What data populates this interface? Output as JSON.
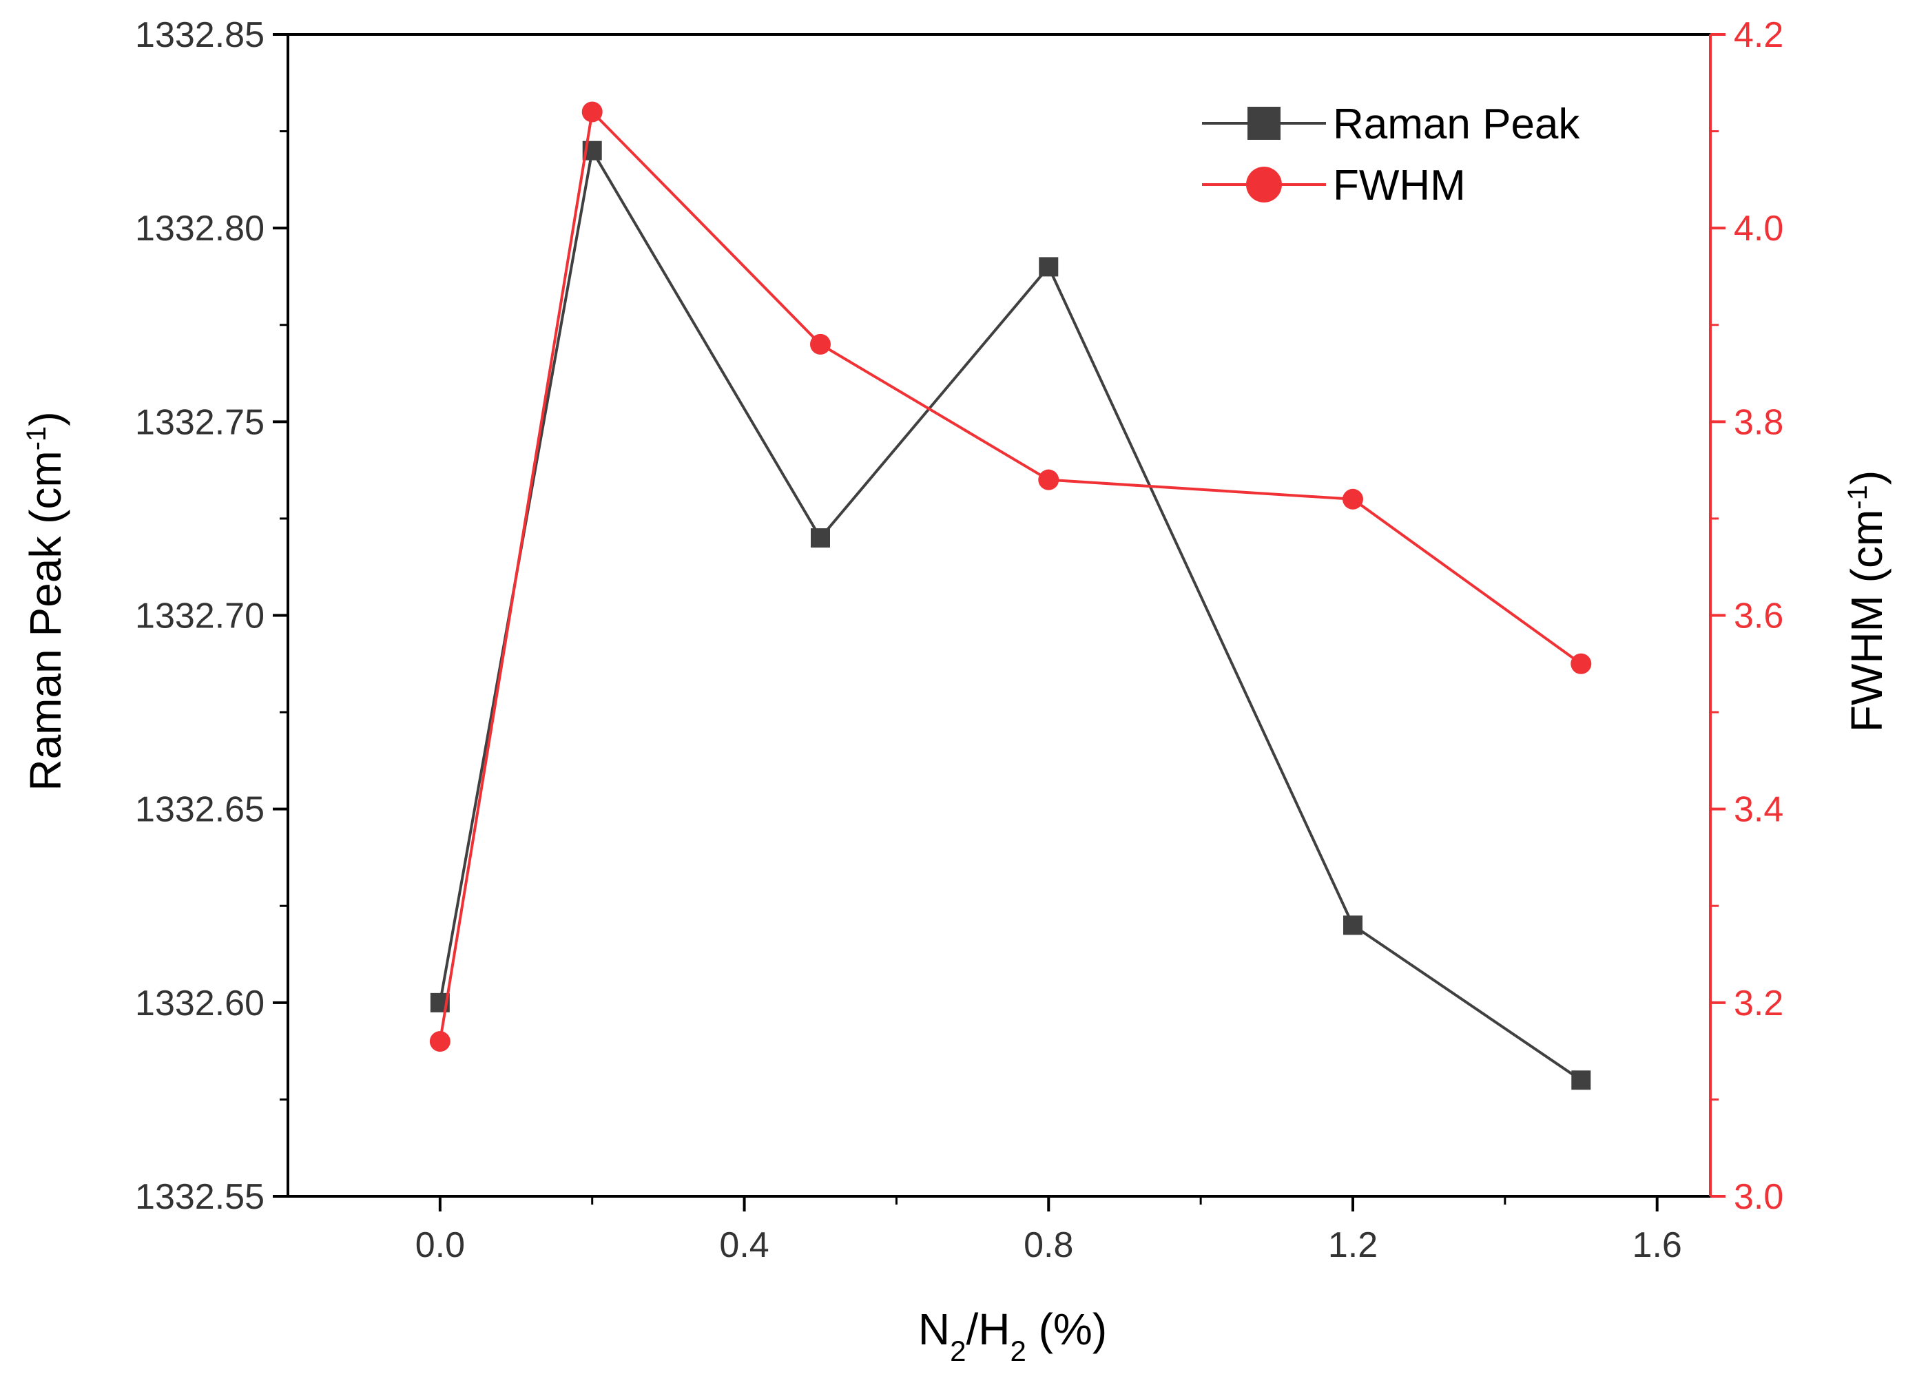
{
  "colors": {
    "raman": "#404040",
    "fwhm": "#f03236",
    "axis": "#000000",
    "tick_text": "#333333"
  },
  "chart_data": {
    "type": "line",
    "x": [
      0.0,
      0.2,
      0.5,
      0.8,
      1.2,
      1.5
    ],
    "xlim": [
      -0.2,
      1.67
    ],
    "xticks": [
      "0.0",
      "0.4",
      "0.8",
      "1.2",
      "1.6"
    ],
    "xtick_values": [
      0.0,
      0.4,
      0.8,
      1.2,
      1.6
    ],
    "xminor": [
      0.2,
      0.6,
      1.0,
      1.4
    ],
    "xlabel": {
      "base1": "N",
      "sub1": "2",
      "slash": "/H",
      "sub2": "2",
      "tail": " (%)"
    },
    "y_left": {
      "label": {
        "main": "Raman Peak (cm",
        "sup": "-1",
        "close": ")"
      },
      "ylim": [
        1332.55,
        1332.85
      ],
      "ticks": [
        "1332.55",
        "1332.60",
        "1332.65",
        "1332.70",
        "1332.75",
        "1332.80",
        "1332.85"
      ],
      "tick_values": [
        1332.55,
        1332.6,
        1332.65,
        1332.7,
        1332.75,
        1332.8,
        1332.85
      ],
      "minor": [
        1332.575,
        1332.625,
        1332.675,
        1332.725,
        1332.775,
        1332.825
      ]
    },
    "y_right": {
      "label": {
        "main": "FWHM (cm",
        "sup": "-1",
        "close": ")"
      },
      "ylim": [
        3.0,
        4.2
      ],
      "ticks": [
        "3.0",
        "3.2",
        "3.4",
        "3.6",
        "3.8",
        "4.0",
        "4.2"
      ],
      "tick_values": [
        3.0,
        3.2,
        3.4,
        3.6,
        3.8,
        4.0,
        4.2
      ],
      "minor": [
        3.1,
        3.3,
        3.5,
        3.7,
        3.9,
        4.1
      ]
    },
    "series": [
      {
        "name": "Raman Peak",
        "axis": "left",
        "marker": "square",
        "values": [
          1332.6,
          1332.82,
          1332.72,
          1332.79,
          1332.62,
          1332.58
        ]
      },
      {
        "name": "FWHM",
        "axis": "right",
        "marker": "circle",
        "values": [
          3.16,
          4.12,
          3.88,
          3.74,
          3.72,
          3.55
        ]
      }
    ],
    "legend_position": "top-right"
  }
}
